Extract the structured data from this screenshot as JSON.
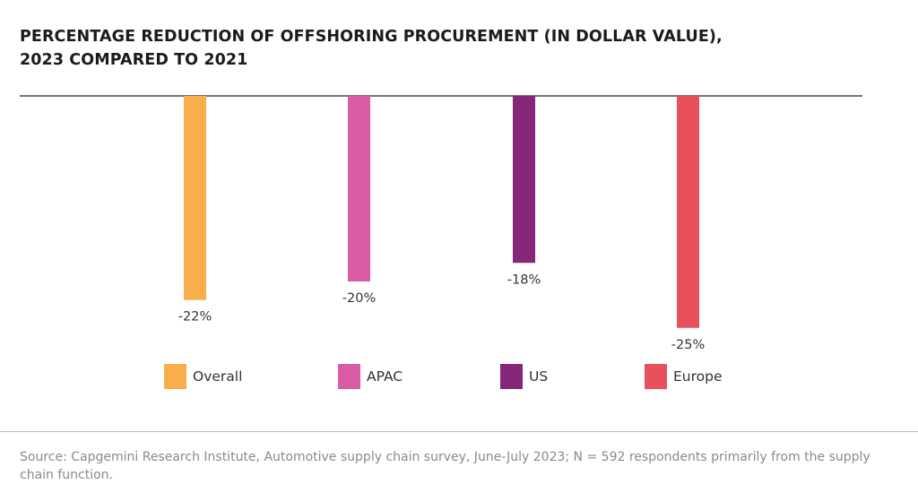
{
  "title_lines": [
    "PERCENTAGE REDUCTION OF OFFSHORING PROCUREMENT (IN DOLLAR VALUE),",
    "2023 COMPARED TO 2021"
  ],
  "chart_data": {
    "type": "bar",
    "orientation": "vertical-downward",
    "categories": [
      "Overall",
      "APAC",
      "US",
      "Europe"
    ],
    "values": [
      -22,
      -20,
      -18,
      -25
    ],
    "value_labels": [
      "-22%",
      "-20%",
      "-18%",
      "-25%"
    ],
    "unit": "%",
    "colors": [
      "#F8AE4A",
      "#D95CA5",
      "#86287A",
      "#E8505B"
    ],
    "ylim": [
      -25,
      0
    ],
    "grid": false,
    "legend_position": "bottom",
    "title": "PERCENTAGE REDUCTION OF OFFSHORING PROCUREMENT (IN DOLLAR VALUE), 2023 COMPARED TO 2021",
    "xlabel": "",
    "ylabel": ""
  },
  "legend": [
    {
      "label": "Overall",
      "color": "#F8AE4A"
    },
    {
      "label": "APAC",
      "color": "#D95CA5"
    },
    {
      "label": "US",
      "color": "#86287A"
    },
    {
      "label": "Europe",
      "color": "#E8505B"
    }
  ],
  "source": "Source: Capgemini Research Institute, Automotive supply chain survey, June-July 2023; N = 592 respondents primarily from the supply chain function."
}
